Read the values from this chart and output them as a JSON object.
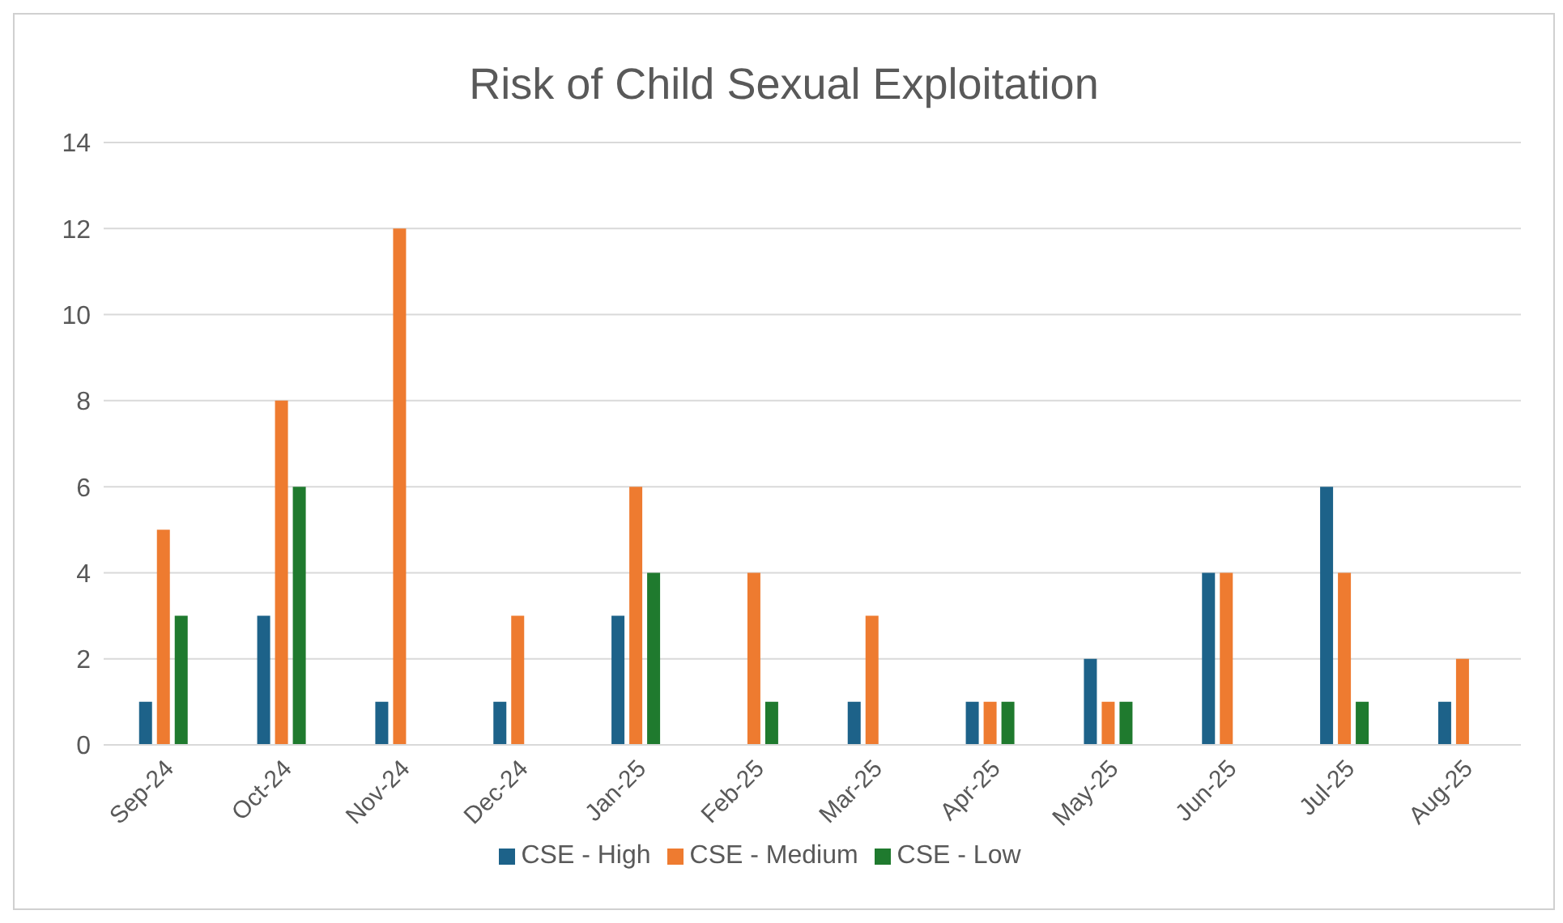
{
  "chart_data": {
    "type": "bar",
    "title": "Risk of Child Sexual Exploitation",
    "categories": [
      "Sep-24",
      "Oct-24",
      "Nov-24",
      "Dec-24",
      "Jan-25",
      "Feb-25",
      "Mar-25",
      "Apr-25",
      "May-25",
      "Jun-25",
      "Jul-25",
      "Aug-25"
    ],
    "series": [
      {
        "name": "CSE - High",
        "color": "#1d6289",
        "values": [
          1,
          3,
          1,
          1,
          3,
          0,
          1,
          1,
          2,
          4,
          6,
          1
        ]
      },
      {
        "name": "CSE - Medium",
        "color": "#ee7b30",
        "values": [
          5,
          8,
          12,
          3,
          6,
          4,
          3,
          1,
          1,
          4,
          4,
          2
        ]
      },
      {
        "name": "CSE - Low",
        "color": "#1f7a2e",
        "values": [
          3,
          6,
          0,
          0,
          4,
          1,
          0,
          1,
          1,
          0,
          1,
          0
        ]
      }
    ],
    "ylim": [
      0,
      14
    ],
    "yticks": [
      0,
      2,
      4,
      6,
      8,
      10,
      12,
      14
    ],
    "grid": "y",
    "legend": "bottom"
  }
}
